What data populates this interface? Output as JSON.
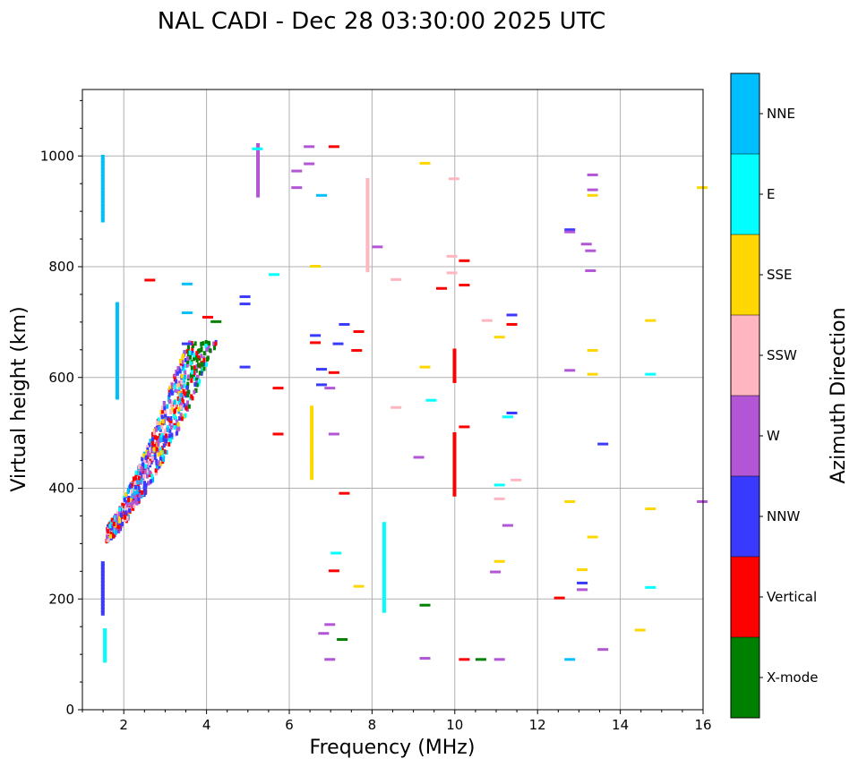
{
  "chart_data": {
    "type": "scatter",
    "title": "NAL CADI - Dec 28 03:30:00 2025 UTC",
    "xlabel": "Frequency (MHz)",
    "ylabel": "Virtual height (km)",
    "xlim": [
      1,
      16
    ],
    "ylim": [
      0,
      1120
    ],
    "xticks": [
      2,
      4,
      6,
      8,
      10,
      12,
      14,
      16
    ],
    "yticks": [
      0,
      200,
      400,
      600,
      800,
      1000
    ],
    "xtick_labels": [
      "2",
      "4",
      "6",
      "8",
      "10",
      "12",
      "14",
      "16"
    ],
    "ytick_labels": [
      "0",
      "200",
      "400",
      "600",
      "800",
      "1000"
    ],
    "grid": true,
    "colorbar": {
      "label": "Azimuth Direction",
      "categories": [
        {
          "name": "X-mode",
          "color": "#008000"
        },
        {
          "name": "Vertical",
          "color": "#ff0000"
        },
        {
          "name": "NNW",
          "color": "#3a3aff"
        },
        {
          "name": "W",
          "color": "#b256d6"
        },
        {
          "name": "SSW",
          "color": "#ffb6c1"
        },
        {
          "name": "SSE",
          "color": "#ffd700"
        },
        {
          "name": "E",
          "color": "#00ffff"
        },
        {
          "name": "NNE",
          "color": "#00bfff"
        }
      ]
    },
    "trace_segments": [
      {
        "f": 1.45,
        "h0": 880,
        "h1": 995,
        "c": "NNE"
      },
      {
        "f": 1.45,
        "h0": 170,
        "h1": 265,
        "c": "NNW"
      },
      {
        "f": 1.5,
        "h0": 85,
        "h1": 140,
        "c": "E"
      },
      {
        "f": 1.8,
        "h0": 560,
        "h1": 730,
        "c": "NNE"
      },
      {
        "f": 5.2,
        "h0": 925,
        "h1": 1015,
        "c": "W"
      },
      {
        "f": 6.5,
        "h0": 415,
        "h1": 545,
        "c": "SSE"
      },
      {
        "f": 7.85,
        "h0": 790,
        "h1": 955,
        "c": "SSW"
      },
      {
        "f": 8.25,
        "h0": 175,
        "h1": 335,
        "c": "E"
      },
      {
        "f": 9.95,
        "h0": 385,
        "h1": 495,
        "c": "Vertical"
      },
      {
        "f": 9.95,
        "h0": 590,
        "h1": 645,
        "c": "Vertical"
      }
    ],
    "trace_ticks": [
      {
        "f": 2.5,
        "h": 775,
        "c": "Vertical"
      },
      {
        "f": 3.4,
        "h": 768,
        "c": "NNE"
      },
      {
        "f": 3.4,
        "h": 716,
        "c": "NNE"
      },
      {
        "f": 3.4,
        "h": 660,
        "c": "NNW"
      },
      {
        "f": 3.9,
        "h": 708,
        "c": "Vertical"
      },
      {
        "f": 4.1,
        "h": 700,
        "c": "X-mode"
      },
      {
        "f": 4.8,
        "h": 745,
        "c": "NNW"
      },
      {
        "f": 4.8,
        "h": 732,
        "c": "NNW"
      },
      {
        "f": 4.8,
        "h": 618,
        "c": "NNW"
      },
      {
        "f": 5.1,
        "h": 1012,
        "c": "E"
      },
      {
        "f": 5.5,
        "h": 785,
        "c": "E"
      },
      {
        "f": 5.6,
        "h": 580,
        "c": "Vertical"
      },
      {
        "f": 5.6,
        "h": 497,
        "c": "Vertical"
      },
      {
        "f": 6.05,
        "h": 972,
        "c": "W"
      },
      {
        "f": 6.05,
        "h": 942,
        "c": "W"
      },
      {
        "f": 6.35,
        "h": 1016,
        "c": "W"
      },
      {
        "f": 6.35,
        "h": 985,
        "c": "W"
      },
      {
        "f": 6.5,
        "h": 800,
        "c": "SSE"
      },
      {
        "f": 6.5,
        "h": 675,
        "c": "NNW"
      },
      {
        "f": 6.5,
        "h": 662,
        "c": "Vertical"
      },
      {
        "f": 6.65,
        "h": 928,
        "c": "NNE"
      },
      {
        "f": 6.65,
        "h": 614,
        "c": "NNW"
      },
      {
        "f": 6.65,
        "h": 586,
        "c": "NNW"
      },
      {
        "f": 6.85,
        "h": 580,
        "c": "W"
      },
      {
        "f": 6.95,
        "h": 1016,
        "c": "Vertical"
      },
      {
        "f": 6.95,
        "h": 608,
        "c": "Vertical"
      },
      {
        "f": 7.05,
        "h": 660,
        "c": "NNW"
      },
      {
        "f": 7.2,
        "h": 695,
        "c": "NNW"
      },
      {
        "f": 7.5,
        "h": 648,
        "c": "Vertical"
      },
      {
        "f": 7.55,
        "h": 682,
        "c": "Vertical"
      },
      {
        "f": 8.45,
        "h": 776,
        "c": "SSW"
      },
      {
        "f": 8.45,
        "h": 545,
        "c": "SSW"
      },
      {
        "f": 9.15,
        "h": 986,
        "c": "SSE"
      },
      {
        "f": 9.15,
        "h": 618,
        "c": "SSE"
      },
      {
        "f": 9.3,
        "h": 558,
        "c": "E"
      },
      {
        "f": 9.0,
        "h": 455,
        "c": "W"
      },
      {
        "f": 9.55,
        "h": 760,
        "c": "Vertical"
      },
      {
        "f": 9.85,
        "h": 958,
        "c": "SSW"
      },
      {
        "f": 9.8,
        "h": 818,
        "c": "SSW"
      },
      {
        "f": 9.8,
        "h": 788,
        "c": "SSW"
      },
      {
        "f": 10.1,
        "h": 810,
        "c": "Vertical"
      },
      {
        "f": 10.1,
        "h": 766,
        "c": "Vertical"
      },
      {
        "f": 10.1,
        "h": 510,
        "c": "Vertical"
      },
      {
        "f": 10.65,
        "h": 702,
        "c": "SSW"
      },
      {
        "f": 10.95,
        "h": 672,
        "c": "SSE"
      },
      {
        "f": 11.15,
        "h": 528,
        "c": "E"
      },
      {
        "f": 11.25,
        "h": 712,
        "c": "NNW"
      },
      {
        "f": 11.25,
        "h": 695,
        "c": "Vertical"
      },
      {
        "f": 11.25,
        "h": 535,
        "c": "NNW"
      },
      {
        "f": 10.95,
        "h": 405,
        "c": "E"
      },
      {
        "f": 10.95,
        "h": 380,
        "c": "SSW"
      },
      {
        "f": 11.15,
        "h": 332,
        "c": "W"
      },
      {
        "f": 11.35,
        "h": 414,
        "c": "SSW"
      },
      {
        "f": 10.95,
        "h": 267,
        "c": "SSE"
      },
      {
        "f": 10.85,
        "h": 248,
        "c": "W"
      },
      {
        "f": 12.65,
        "h": 866,
        "c": "NNW"
      },
      {
        "f": 12.65,
        "h": 862,
        "c": "W"
      },
      {
        "f": 13.05,
        "h": 840,
        "c": "W"
      },
      {
        "f": 13.15,
        "h": 828,
        "c": "W"
      },
      {
        "f": 13.15,
        "h": 792,
        "c": "W"
      },
      {
        "f": 13.2,
        "h": 965,
        "c": "W"
      },
      {
        "f": 13.2,
        "h": 938,
        "c": "W"
      },
      {
        "f": 13.2,
        "h": 928,
        "c": "SSE"
      },
      {
        "f": 12.65,
        "h": 612,
        "c": "W"
      },
      {
        "f": 13.2,
        "h": 648,
        "c": "SSE"
      },
      {
        "f": 13.2,
        "h": 605,
        "c": "SSE"
      },
      {
        "f": 13.45,
        "h": 479,
        "c": "NNW"
      },
      {
        "f": 12.65,
        "h": 375,
        "c": "SSE"
      },
      {
        "f": 13.2,
        "h": 311,
        "c": "SSE"
      },
      {
        "f": 12.95,
        "h": 252,
        "c": "SSE"
      },
      {
        "f": 12.95,
        "h": 228,
        "c": "NNW"
      },
      {
        "f": 12.95,
        "h": 216,
        "c": "W"
      },
      {
        "f": 12.4,
        "h": 201,
        "c": "Vertical"
      },
      {
        "f": 12.65,
        "h": 90,
        "c": "NNE"
      },
      {
        "f": 13.45,
        "h": 108,
        "c": "W"
      },
      {
        "f": 14.6,
        "h": 702,
        "c": "SSE"
      },
      {
        "f": 14.6,
        "h": 605,
        "c": "E"
      },
      {
        "f": 14.6,
        "h": 362,
        "c": "SSE"
      },
      {
        "f": 14.6,
        "h": 220,
        "c": "E"
      },
      {
        "f": 14.35,
        "h": 143,
        "c": "SSE"
      },
      {
        "f": 15.85,
        "h": 942,
        "c": "SSE"
      },
      {
        "f": 15.85,
        "h": 375,
        "c": "W"
      },
      {
        "f": 8.0,
        "h": 835,
        "c": "W"
      },
      {
        "f": 7.2,
        "h": 390,
        "c": "Vertical"
      },
      {
        "f": 7.0,
        "h": 282,
        "c": "E"
      },
      {
        "f": 6.95,
        "h": 250,
        "c": "Vertical"
      },
      {
        "f": 7.55,
        "h": 222,
        "c": "SSE"
      },
      {
        "f": 6.85,
        "h": 153,
        "c": "W"
      },
      {
        "f": 6.7,
        "h": 137,
        "c": "W"
      },
      {
        "f": 7.15,
        "h": 126,
        "c": "X-mode"
      },
      {
        "f": 6.85,
        "h": 90,
        "c": "W"
      },
      {
        "f": 9.15,
        "h": 188,
        "c": "X-mode"
      },
      {
        "f": 9.15,
        "h": 92,
        "c": "W"
      },
      {
        "f": 10.1,
        "h": 90,
        "c": "Vertical"
      },
      {
        "f": 10.5,
        "h": 90,
        "c": "X-mode"
      },
      {
        "f": 10.95,
        "h": 90,
        "c": "W"
      },
      {
        "f": 6.95,
        "h": 497,
        "c": "W"
      }
    ]
  }
}
